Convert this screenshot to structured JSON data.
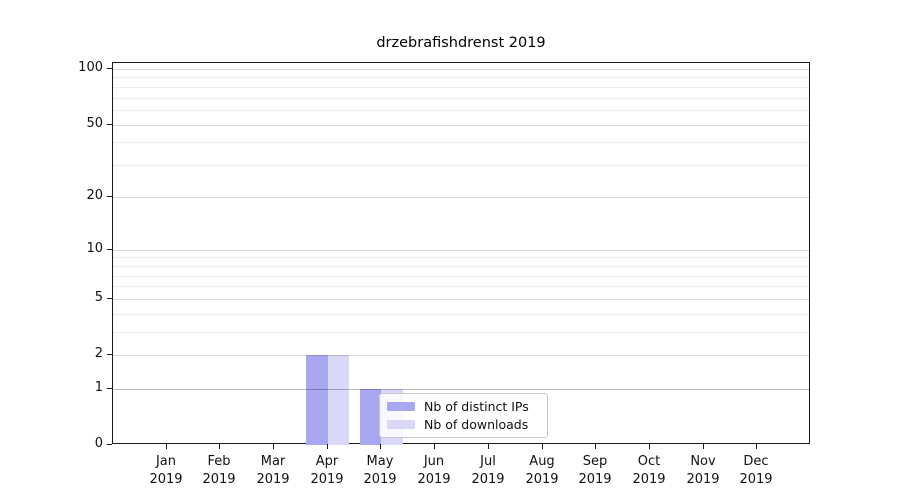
{
  "chart_data": {
    "type": "bar",
    "title": "drzebrafishdrenst 2019",
    "x_categories": [
      {
        "month": "Jan",
        "year": "2019"
      },
      {
        "month": "Feb",
        "year": "2019"
      },
      {
        "month": "Mar",
        "year": "2019"
      },
      {
        "month": "Apr",
        "year": "2019"
      },
      {
        "month": "May",
        "year": "2019"
      },
      {
        "month": "Jun",
        "year": "2019"
      },
      {
        "month": "Jul",
        "year": "2019"
      },
      {
        "month": "Aug",
        "year": "2019"
      },
      {
        "month": "Sep",
        "year": "2019"
      },
      {
        "month": "Oct",
        "year": "2019"
      },
      {
        "month": "Nov",
        "year": "2019"
      },
      {
        "month": "Dec",
        "year": "2019"
      }
    ],
    "series": [
      {
        "name": "Nb of distinct IPs",
        "color": "#a8a8f2",
        "values": [
          0,
          0,
          0,
          2,
          1,
          0,
          0,
          0,
          0,
          0,
          0,
          0
        ]
      },
      {
        "name": "Nb of downloads",
        "color": "#d9d9f7",
        "values": [
          0,
          0,
          0,
          2,
          1,
          0,
          0,
          0,
          0,
          0,
          0,
          0
        ]
      }
    ],
    "y_axis": {
      "scale": "log1p",
      "ticks": [
        0,
        1,
        2,
        5,
        10,
        20,
        50,
        100
      ],
      "minor_ticks": [
        3,
        4,
        6,
        7,
        8,
        9,
        30,
        40,
        60,
        70,
        80,
        90
      ],
      "vmax": 107.5
    },
    "grid": {
      "major_color": "rgba(0,0,0,0.16)",
      "minor_color": "rgba(0,0,0,0.07)",
      "unit_line_color": "rgba(0,0,0,0.27)"
    },
    "legend_position": "lower center"
  }
}
